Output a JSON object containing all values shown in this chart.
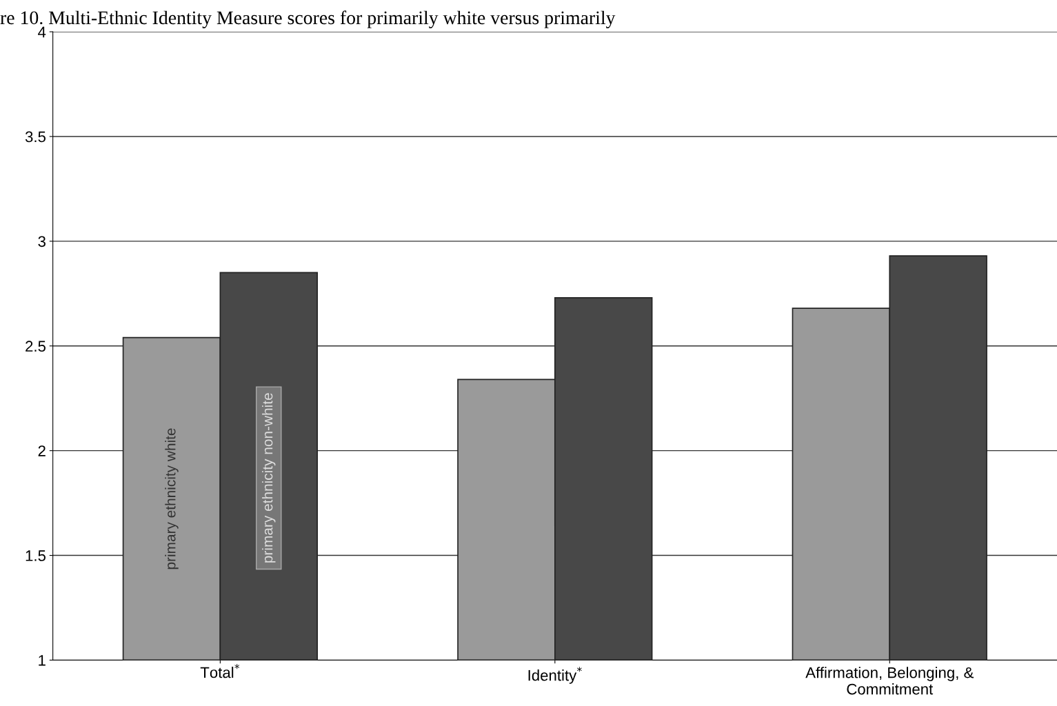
{
  "chart_data": {
    "type": "bar",
    "title": "re 10. Multi-Ethnic Identity Measure scores for primarily white versus primarily",
    "categories": [
      "Total$^{*}$",
      "Identity$^{*}$",
      "Affirmation, Belonging, &\nCommitment"
    ],
    "series": [
      {
        "name": "primary ethnicity white",
        "color": "#9a9a9a",
        "values": [
          2.54,
          2.34,
          2.68
        ]
      },
      {
        "name": "primary ethnicity non-white",
        "color": "#484848",
        "values": [
          2.85,
          2.73,
          2.93
        ]
      }
    ],
    "ylim": [
      1,
      4
    ],
    "yticks": [
      1,
      1.5,
      2,
      2.5,
      3,
      3.5,
      4
    ],
    "grid": "y",
    "legend": false
  }
}
